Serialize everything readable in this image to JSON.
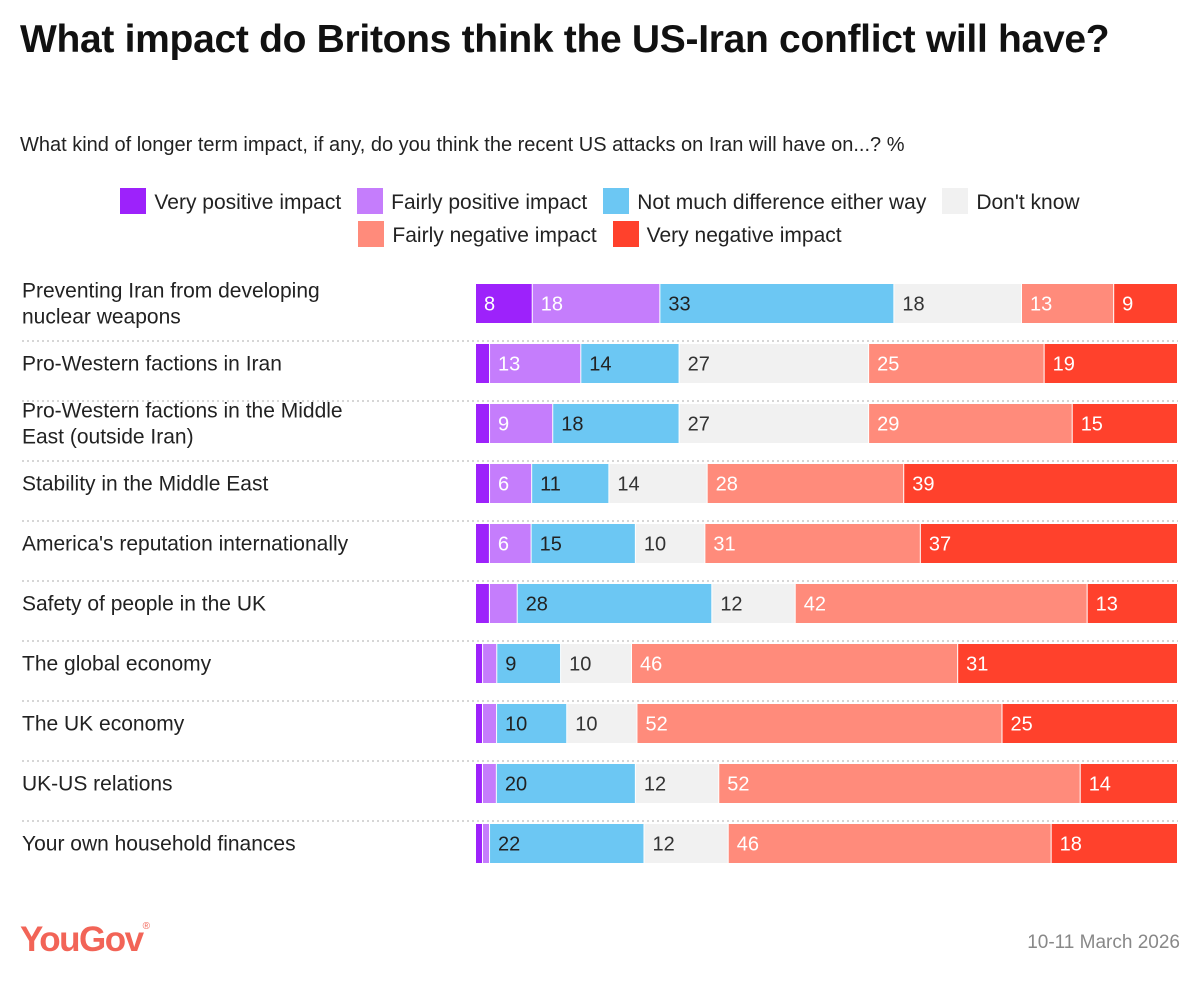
{
  "chart_data": {
    "type": "bar",
    "orientation": "horizontal",
    "stacked": true,
    "title": "What impact do Britons think the US-Iran conflict will have?",
    "subtitle": "What kind of longer term impact, if any, do you think the recent US attacks on Iran will have on...? %",
    "legend_position": "top",
    "categories": [
      "Preventing Iran from developing nuclear weapons",
      "Pro-Western factions in Iran",
      "Pro-Western factions in the Middle East (outside Iran)",
      "Stability in the Middle East",
      "America's reputation internationally",
      "Safety of people in the UK",
      "The global economy",
      "The UK economy",
      "UK-US relations",
      "Your own household finances"
    ],
    "series": [
      {
        "name": "Very positive impact",
        "color": "#9d22fb",
        "label_color": "#ffffff",
        "values": [
          8,
          2,
          2,
          2,
          2,
          2,
          1,
          1,
          1,
          1
        ]
      },
      {
        "name": "Fairly positive impact",
        "color": "#c57dfc",
        "label_color": "#ffffff",
        "values": [
          18,
          13,
          9,
          6,
          6,
          4,
          2,
          2,
          2,
          1
        ]
      },
      {
        "name": "Not much difference either way",
        "color": "#6cc7f3",
        "label_color": "#222222",
        "values": [
          33,
          14,
          18,
          11,
          15,
          28,
          9,
          10,
          20,
          22
        ]
      },
      {
        "name": "Don't know",
        "color": "#f1f1f1",
        "label_color": "#333333",
        "values": [
          18,
          27,
          27,
          14,
          10,
          12,
          10,
          10,
          12,
          12
        ]
      },
      {
        "name": "Fairly negative impact",
        "color": "#ff8b7b",
        "label_color": "#ffffff",
        "values": [
          13,
          25,
          29,
          28,
          31,
          42,
          46,
          52,
          52,
          46
        ]
      },
      {
        "name": "Very negative impact",
        "color": "#ff412c",
        "label_color": "#ffffff",
        "values": [
          9,
          19,
          15,
          39,
          37,
          13,
          31,
          25,
          14,
          18
        ]
      }
    ],
    "grid": false
  },
  "footer": {
    "brand": "YouGov",
    "registered": "®",
    "date": "10-11 March 2026"
  }
}
